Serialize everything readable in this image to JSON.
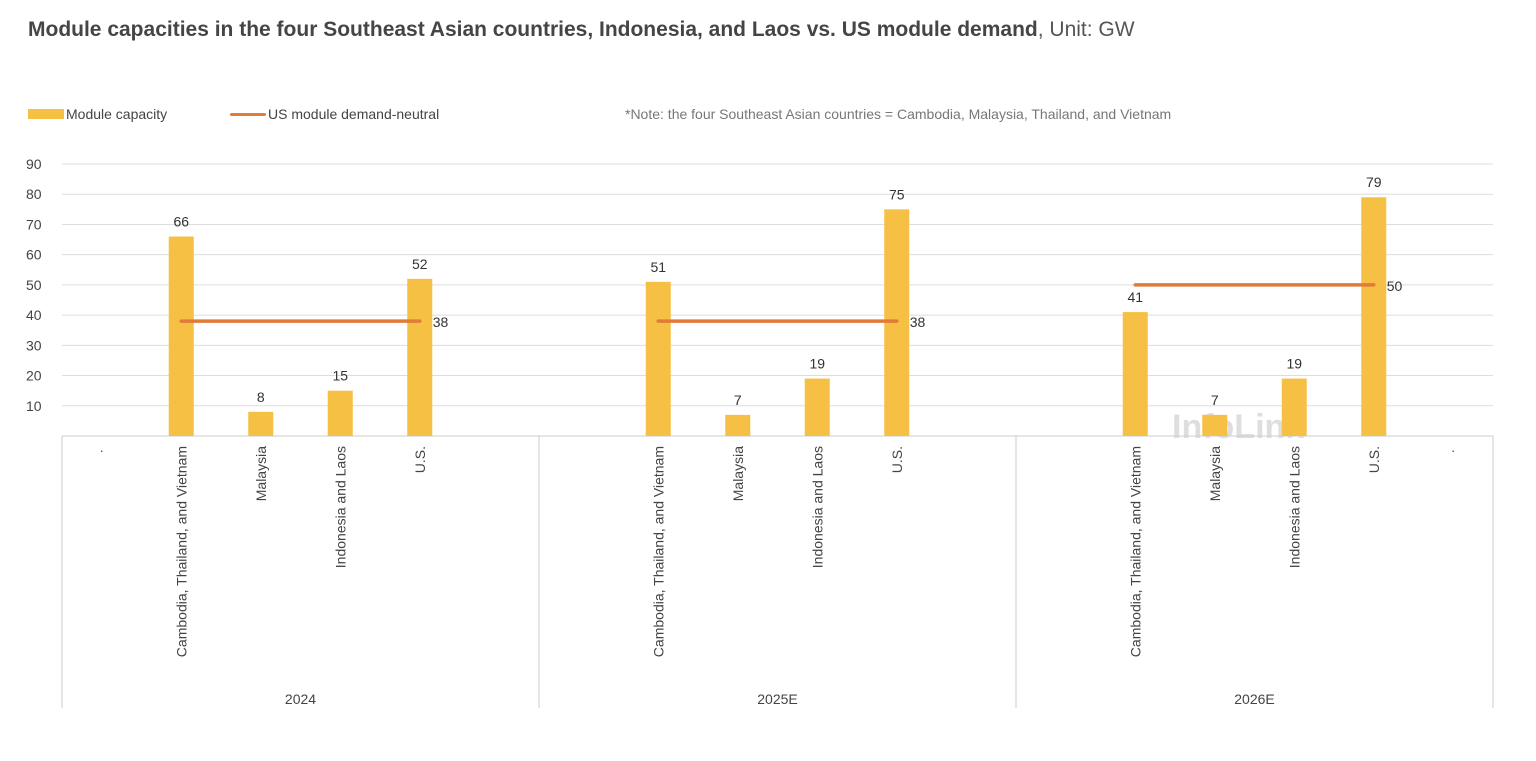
{
  "title": {
    "bold": "Module capacities in the four Southeast Asian countries, Indonesia, and Laos vs. US module demand",
    "unit": ", Unit: GW"
  },
  "legend": {
    "bar_label": "Module capacity",
    "line_label": "US module demand-neutral"
  },
  "note": "*Note: the four Southeast Asian countries = Cambodia, Malaysia, Thailand, and Vietnam",
  "watermark": "InfoLink",
  "colors": {
    "bar": "#F5C043",
    "line": "#E07B39",
    "grid": "#dddddd",
    "axis": "#cccccc"
  },
  "chart_data": {
    "type": "bar",
    "ylim": [
      0,
      90
    ],
    "yticks": [
      10,
      20,
      30,
      40,
      50,
      60,
      70,
      80,
      90
    ],
    "grid": true,
    "legend_position": "top-left",
    "groups": [
      {
        "name": "2024",
        "placeholder": ".",
        "categories": [
          "Cambodia, Thailand, and Vietnam",
          "Malaysia",
          "Indonesia and Laos",
          "U.S."
        ],
        "values": [
          66,
          8,
          15,
          52
        ],
        "labels": [
          "66",
          "8",
          "15",
          "52"
        ],
        "demand": 38,
        "demand_label": "38"
      },
      {
        "name": "2025E",
        "placeholder": "",
        "categories": [
          "Cambodia, Thailand, and Vietnam",
          "Malaysia",
          "Indonesia and Laos",
          "U.S."
        ],
        "values": [
          51,
          7,
          19,
          75
        ],
        "labels": [
          "51",
          "7",
          "19",
          "75"
        ],
        "demand": 38,
        "demand_label": "38"
      },
      {
        "name": "2026E",
        "placeholder": ".",
        "categories": [
          "Cambodia, Thailand, and Vietnam",
          "Malaysia",
          "Indonesia and Laos",
          "U.S."
        ],
        "values": [
          41,
          7,
          19,
          79
        ],
        "labels": [
          "41",
          "7",
          "19",
          "79"
        ],
        "demand": 50,
        "demand_label": "50"
      }
    ]
  }
}
